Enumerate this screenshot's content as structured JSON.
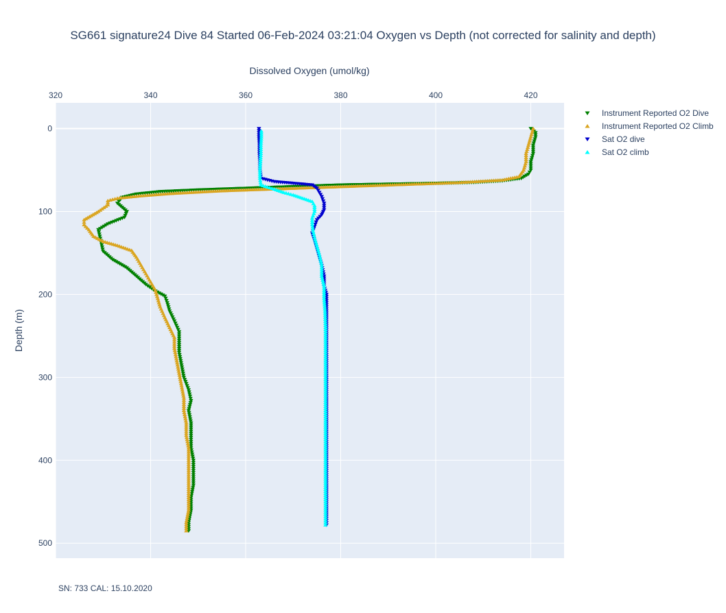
{
  "chart_data": {
    "type": "scatter",
    "title": "SG661 signature24 Dive 84 Started 06-Feb-2024 03:21:04  Oxygen vs Depth (not corrected for salinity and depth)",
    "xlabel": "Dissolved Oxygen (umol/kg)",
    "ylabel": "Depth (m)",
    "xlim": [
      320,
      427
    ],
    "ylim": [
      518,
      -31
    ],
    "x_ticks": [
      320,
      340,
      360,
      380,
      400,
      420
    ],
    "y_ticks": [
      0,
      100,
      200,
      300,
      400,
      500
    ],
    "x_axis_side": "top",
    "y_reversed": true,
    "grid": true,
    "legend_position": "top-right",
    "series": [
      {
        "name": "Instrument Reported O2 Dive",
        "color": "#008000",
        "marker": "triangle-down",
        "points": [
          [
            420,
            0
          ],
          [
            421,
            5
          ],
          [
            421,
            10
          ],
          [
            420.5,
            20
          ],
          [
            420.5,
            30
          ],
          [
            420,
            40
          ],
          [
            420,
            50
          ],
          [
            419.5,
            55
          ],
          [
            418,
            60
          ],
          [
            414,
            63
          ],
          [
            408,
            65
          ],
          [
            400,
            66
          ],
          [
            390,
            67
          ],
          [
            380,
            68
          ],
          [
            370,
            70
          ],
          [
            360,
            72
          ],
          [
            350,
            74
          ],
          [
            342,
            76
          ],
          [
            337,
            79
          ],
          [
            334,
            83
          ],
          [
            333,
            90
          ],
          [
            334,
            95
          ],
          [
            335,
            100
          ],
          [
            334.5,
            107
          ],
          [
            331,
            115
          ],
          [
            329,
            122
          ],
          [
            329.5,
            135
          ],
          [
            330,
            148
          ],
          [
            332,
            158
          ],
          [
            335,
            168
          ],
          [
            337,
            178
          ],
          [
            339,
            188
          ],
          [
            341,
            196
          ],
          [
            343,
            202
          ],
          [
            343.5,
            210
          ],
          [
            344,
            220
          ],
          [
            345,
            232
          ],
          [
            346,
            245
          ],
          [
            346,
            258
          ],
          [
            346,
            270
          ],
          [
            346.5,
            285
          ],
          [
            347,
            300
          ],
          [
            348,
            315
          ],
          [
            348.5,
            328
          ],
          [
            348,
            340
          ],
          [
            348.5,
            355
          ],
          [
            348.5,
            370
          ],
          [
            348.5,
            385
          ],
          [
            349,
            400
          ],
          [
            349,
            415
          ],
          [
            349,
            430
          ],
          [
            348.5,
            445
          ],
          [
            348.5,
            460
          ],
          [
            348,
            475
          ],
          [
            348,
            485
          ]
        ]
      },
      {
        "name": "Instrument Reported O2 Climb",
        "color": "#DAA520",
        "marker": "triangle-up",
        "points": [
          [
            420.5,
            0
          ],
          [
            420,
            10
          ],
          [
            419.5,
            20
          ],
          [
            419,
            30
          ],
          [
            419,
            40
          ],
          [
            418.5,
            50
          ],
          [
            417.5,
            58
          ],
          [
            414,
            62
          ],
          [
            405,
            65
          ],
          [
            395,
            67
          ],
          [
            385,
            69
          ],
          [
            375,
            71
          ],
          [
            365,
            73
          ],
          [
            355,
            75
          ],
          [
            345,
            78
          ],
          [
            338,
            81
          ],
          [
            333,
            84
          ],
          [
            331,
            87
          ],
          [
            331,
            92
          ],
          [
            329,
            100
          ],
          [
            326,
            110
          ],
          [
            326,
            116
          ],
          [
            327,
            122
          ],
          [
            328,
            130
          ],
          [
            330,
            136
          ],
          [
            333,
            141
          ],
          [
            336,
            147
          ],
          [
            337,
            155
          ],
          [
            338,
            165
          ],
          [
            339,
            175
          ],
          [
            340,
            185
          ],
          [
            341,
            195
          ],
          [
            341.5,
            205
          ],
          [
            342,
            215
          ],
          [
            343,
            228
          ],
          [
            344,
            240
          ],
          [
            345,
            252
          ],
          [
            345,
            265
          ],
          [
            345.5,
            280
          ],
          [
            346,
            295
          ],
          [
            346.5,
            310
          ],
          [
            347,
            325
          ],
          [
            347,
            340
          ],
          [
            347.5,
            355
          ],
          [
            347.5,
            370
          ],
          [
            348,
            385
          ],
          [
            348,
            400
          ],
          [
            348,
            415
          ],
          [
            348,
            430
          ],
          [
            348,
            445
          ],
          [
            348,
            460
          ],
          [
            347.5,
            475
          ],
          [
            347.5,
            485
          ]
        ]
      },
      {
        "name": "Sat O2 dive",
        "color": "#0000CD",
        "marker": "triangle-down",
        "points": [
          [
            362.8,
            0
          ],
          [
            362.8,
            10
          ],
          [
            362.9,
            20
          ],
          [
            362.9,
            30
          ],
          [
            363,
            40
          ],
          [
            363,
            50
          ],
          [
            363.2,
            60
          ],
          [
            366,
            64
          ],
          [
            370,
            66
          ],
          [
            374,
            68
          ],
          [
            375,
            72
          ],
          [
            376,
            82
          ],
          [
            376.5,
            90
          ],
          [
            376.5,
            98
          ],
          [
            376,
            104
          ],
          [
            375,
            110
          ],
          [
            374.5,
            118
          ],
          [
            374,
            126
          ],
          [
            374.5,
            135
          ],
          [
            375,
            145
          ],
          [
            375.5,
            155
          ],
          [
            376,
            165
          ],
          [
            376.5,
            178
          ],
          [
            376.5,
            190
          ],
          [
            377,
            200
          ],
          [
            377,
            215
          ],
          [
            377,
            230
          ],
          [
            377,
            250
          ],
          [
            377,
            270
          ],
          [
            377,
            290
          ],
          [
            377,
            310
          ],
          [
            377,
            330
          ],
          [
            377,
            350
          ],
          [
            377,
            370
          ],
          [
            377,
            390
          ],
          [
            377,
            410
          ],
          [
            377,
            430
          ],
          [
            377,
            450
          ],
          [
            377,
            470
          ],
          [
            377,
            478
          ]
        ]
      },
      {
        "name": "Sat O2 climb",
        "color": "#00FFFF",
        "marker": "triangle-up",
        "points": [
          [
            363.3,
            3
          ],
          [
            363.3,
            10
          ],
          [
            363.2,
            20
          ],
          [
            363.2,
            30
          ],
          [
            363.1,
            40
          ],
          [
            363,
            50
          ],
          [
            363,
            60
          ],
          [
            363.2,
            68
          ],
          [
            366,
            73
          ],
          [
            368,
            77
          ],
          [
            370,
            80
          ],
          [
            372,
            84
          ],
          [
            374,
            88
          ],
          [
            374.5,
            93
          ],
          [
            374.5,
            100
          ],
          [
            374,
            108
          ],
          [
            374,
            116
          ],
          [
            374.2,
            124
          ],
          [
            374.5,
            132
          ],
          [
            375,
            142
          ],
          [
            375.5,
            152
          ],
          [
            376,
            165
          ],
          [
            376,
            178
          ],
          [
            376.5,
            190
          ],
          [
            376.5,
            205
          ],
          [
            376.7,
            220
          ],
          [
            376.8,
            240
          ],
          [
            376.8,
            260
          ],
          [
            376.8,
            280
          ],
          [
            376.8,
            300
          ],
          [
            376.8,
            320
          ],
          [
            376.8,
            340
          ],
          [
            376.8,
            360
          ],
          [
            376.8,
            380
          ],
          [
            376.8,
            400
          ],
          [
            376.8,
            420
          ],
          [
            376.8,
            440
          ],
          [
            376.8,
            460
          ],
          [
            376.8,
            478
          ]
        ]
      }
    ]
  },
  "footnote": "SN: 733  CAL: 15.10.2020"
}
